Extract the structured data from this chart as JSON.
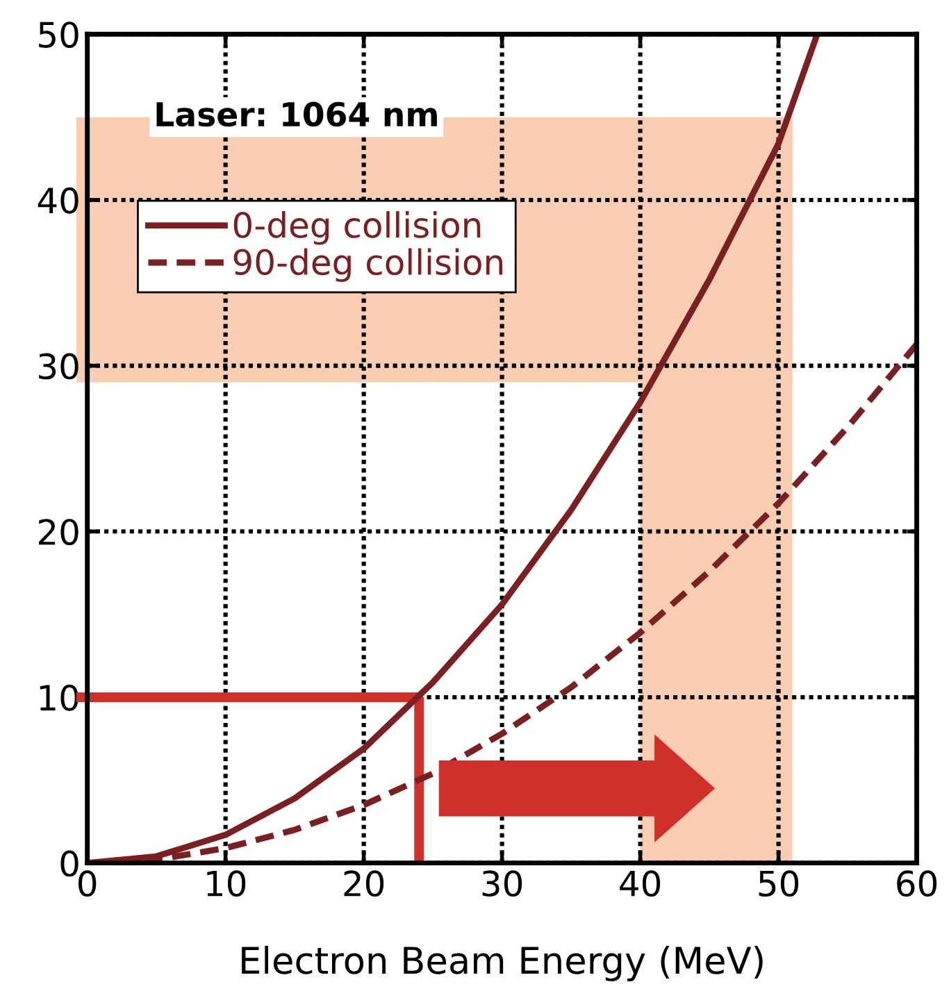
{
  "chart_data": {
    "type": "line",
    "xlabel": "Electron Beam Energy (MeV)",
    "xlim": [
      0,
      60
    ],
    "xticks": [
      0,
      10,
      20,
      30,
      40,
      50,
      60
    ],
    "ylim": [
      0,
      50
    ],
    "yticks": [
      0,
      10,
      20,
      30,
      40,
      50
    ],
    "series": [
      {
        "name": "0-deg collision",
        "color": "#7a1f22",
        "line_style": "solid",
        "x": [
          0,
          5,
          10,
          15,
          20,
          25,
          30,
          35,
          40,
          45,
          50,
          52.8
        ],
        "values": [
          0,
          0.4,
          1.7,
          3.9,
          6.9,
          10.9,
          15.6,
          21.3,
          27.8,
          35.2,
          43.4,
          50
        ]
      },
      {
        "name": "90-deg collision",
        "color": "#7a1f22",
        "line_style": "dashed",
        "x": [
          0,
          5,
          10,
          15,
          20,
          25,
          30,
          35,
          40,
          45,
          50,
          55,
          60
        ],
        "values": [
          0,
          0.2,
          0.9,
          2.0,
          3.5,
          5.4,
          7.8,
          10.6,
          13.9,
          17.6,
          21.7,
          26.3,
          31.3
        ]
      }
    ],
    "bands": [
      {
        "axis": "y",
        "from": 29,
        "to": 45,
        "color": "#f9cdb2"
      },
      {
        "axis": "x",
        "from": 40,
        "to": 51,
        "color": "#f9cdb2"
      }
    ],
    "ref_lines": [
      {
        "axis": "y",
        "value": 10,
        "color": "#d0302a"
      },
      {
        "axis": "x",
        "value": 24,
        "color": "#d0302a"
      }
    ],
    "annotations": [
      "Laser: 1064 nm"
    ],
    "grid": true,
    "legend": "top left"
  }
}
